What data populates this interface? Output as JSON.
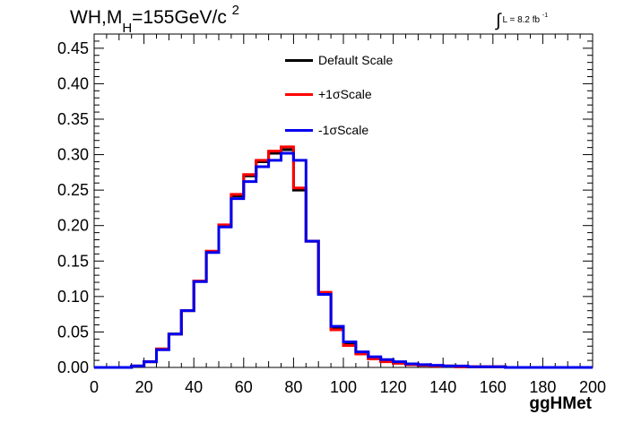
{
  "chart_data": {
    "type": "line",
    "style": "step-histogram",
    "title_main": "WH,M",
    "title_sub": "H",
    "title_rest": "=155GeV/c",
    "title_sup": "2",
    "lumi_integral": "∫",
    "lumi_text": "L = 8.2 fb",
    "lumi_exp": "-1",
    "xlabel": "ggHMet",
    "ylabel": "",
    "xlim": [
      0,
      200
    ],
    "ylim": [
      0,
      0.47
    ],
    "x_ticks": [
      "0",
      "20",
      "40",
      "60",
      "80",
      "100",
      "120",
      "140",
      "160",
      "180",
      "200"
    ],
    "y_ticks": [
      "0.00",
      "0.05",
      "0.10",
      "0.15",
      "0.20",
      "0.25",
      "0.30",
      "0.35",
      "0.40",
      "0.45"
    ],
    "bin_edges": [
      0,
      5,
      10,
      15,
      20,
      25,
      30,
      35,
      40,
      45,
      50,
      55,
      60,
      65,
      70,
      75,
      80,
      85,
      90,
      95,
      100,
      105,
      110,
      115,
      120,
      125,
      130,
      135,
      140,
      145,
      150,
      155,
      160,
      165,
      170,
      175,
      180,
      185,
      190,
      195,
      200
    ],
    "legend_position": "top-center",
    "series": [
      {
        "name": "Default Scale",
        "color": "#000000",
        "values": [
          0,
          0,
          0,
          0.002,
          0.008,
          0.026,
          0.047,
          0.08,
          0.122,
          0.163,
          0.2,
          0.242,
          0.27,
          0.29,
          0.302,
          0.307,
          0.25,
          0.178,
          0.105,
          0.055,
          0.033,
          0.02,
          0.013,
          0.009,
          0.006,
          0.004,
          0.003,
          0.002,
          0.002,
          0.001,
          0.001,
          0.001,
          0.001,
          0,
          0,
          0,
          0,
          0,
          0,
          0
        ]
      },
      {
        "name": "+1σScale",
        "color": "#ff0000",
        "values": [
          0,
          0,
          0,
          0.002,
          0.008,
          0.026,
          0.047,
          0.08,
          0.122,
          0.164,
          0.201,
          0.244,
          0.272,
          0.292,
          0.305,
          0.311,
          0.253,
          0.178,
          0.106,
          0.053,
          0.031,
          0.019,
          0.012,
          0.008,
          0.006,
          0.004,
          0.003,
          0.002,
          0.002,
          0.001,
          0.001,
          0.001,
          0.001,
          0,
          0,
          0,
          0,
          0,
          0,
          0
        ]
      },
      {
        "name": "-1σScale",
        "color": "#0000ee",
        "values": [
          0,
          0,
          0,
          0.002,
          0.008,
          0.025,
          0.047,
          0.08,
          0.121,
          0.162,
          0.198,
          0.238,
          0.262,
          0.283,
          0.292,
          0.302,
          0.292,
          0.178,
          0.103,
          0.058,
          0.036,
          0.022,
          0.015,
          0.011,
          0.008,
          0.005,
          0.004,
          0.003,
          0.002,
          0.002,
          0.001,
          0.001,
          0.001,
          0,
          0,
          0,
          0,
          0,
          0,
          0
        ]
      }
    ]
  }
}
